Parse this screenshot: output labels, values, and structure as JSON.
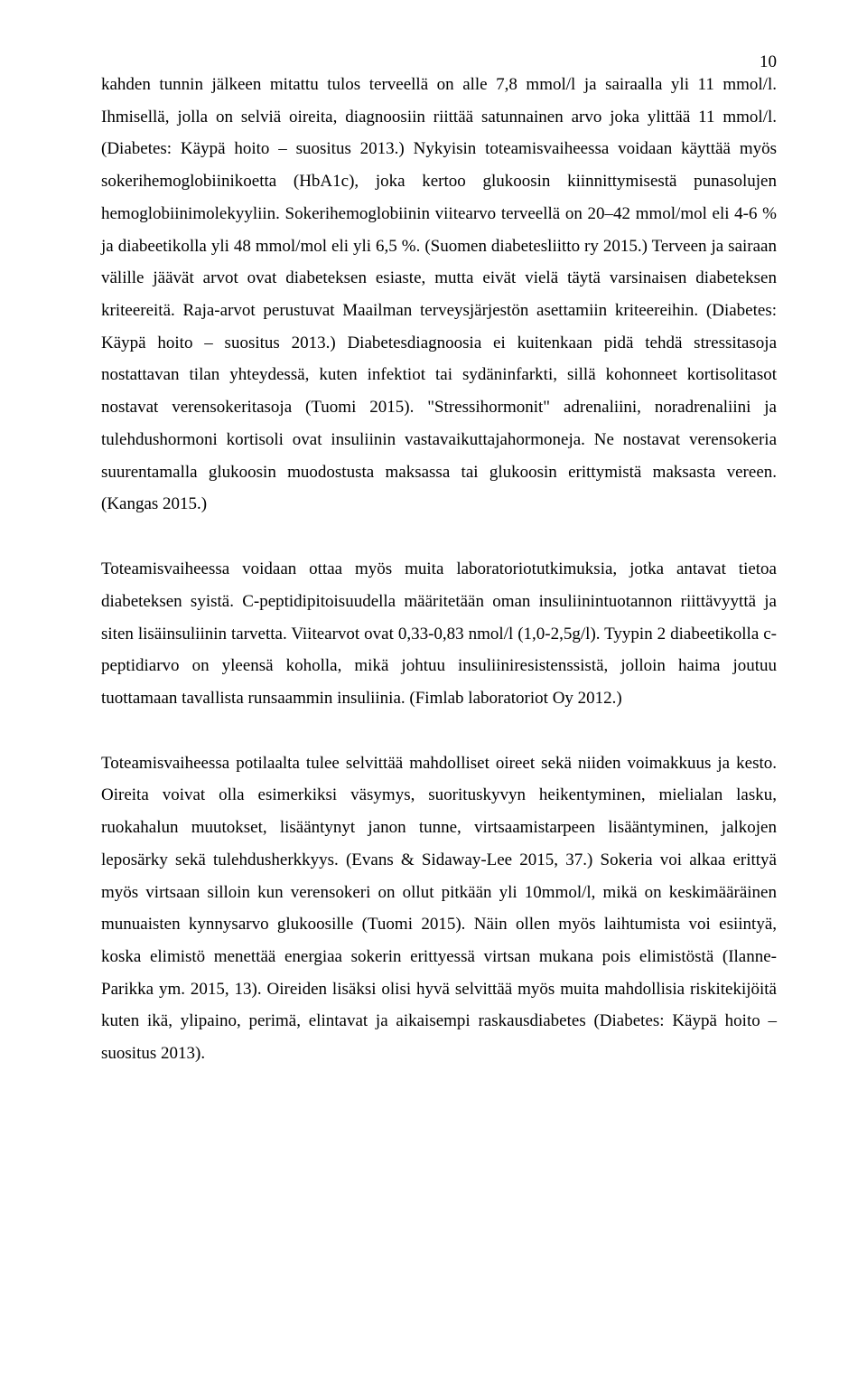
{
  "page_number": "10",
  "paragraphs": [
    "kahden tunnin jälkeen mitattu tulos terveellä on alle 7,8 mmol/l ja sairaalla yli 11 mmol/l. Ihmisellä, jolla on selviä oireita, diagnoosiin riittää satunnainen arvo joka ylittää 11 mmol/l. (Diabetes: Käypä hoito – suositus 2013.) Nykyisin toteamisvaiheessa voidaan käyttää myös sokerihemoglobiinikoetta (HbA1c), joka kertoo glukoosin kiinnittymisestä punasolujen hemoglobiinimolekyyliin. Sokerihemoglobiinin viitearvo terveellä on 20–42 mmol/mol eli 4-6 % ja diabeetikolla yli 48 mmol/mol eli yli 6,5 %. (Suomen diabetesliitto ry 2015.) Terveen ja sairaan välille jäävät arvot ovat diabeteksen esiaste, mutta eivät vielä täytä varsinaisen diabeteksen kriteereitä. Raja-arvot perustuvat Maailman terveysjärjestön asettamiin kriteereihin. (Diabetes: Käypä hoito – suositus 2013.) Diabetesdiagnoosia ei kuitenkaan pidä tehdä stressitasoja nostattavan tilan yhteydessä, kuten infektiot tai sydäninfarkti, sillä kohonneet kortisolitasot nostavat verensokeritasoja (Tuomi 2015). \"Stressihormonit\" adrenaliini, noradrenaliini ja tulehdushormoni kortisoli ovat insuliinin vastavaikuttajahormoneja. Ne nostavat verensokeria suurentamalla glukoosin muodostusta maksassa tai glukoosin erittymistä maksasta vereen. (Kangas 2015.)",
    "Toteamisvaiheessa voidaan ottaa myös muita laboratoriotutkimuksia, jotka antavat tietoa diabeteksen syistä. C-peptidipitoisuudella määritetään oman insuliinintuotannon riittävyyttä ja siten lisäinsuliinin tarvetta. Viitearvot ovat 0,33-0,83 nmol/l (1,0-2,5g/l). Tyypin 2 diabeetikolla c-peptidiarvo on yleensä koholla, mikä johtuu insuliiniresistenssistä, jolloin haima joutuu tuottamaan tavallista runsaammin insuliinia. (Fimlab laboratoriot Oy 2012.)",
    "Toteamisvaiheessa potilaalta tulee selvittää mahdolliset oireet sekä niiden voimakkuus ja kesto. Oireita voivat olla esimerkiksi väsymys, suorituskyvyn heikentyminen, mielialan lasku, ruokahalun muutokset, lisääntynyt janon tunne, virtsaamistarpeen lisääntyminen, jalkojen leposärky sekä tulehdusherkkyys. (Evans & Sidaway-Lee 2015, 37.) Sokeria voi alkaa erittyä myös virtsaan silloin kun verensokeri on ollut pitkään yli 10mmol/l, mikä on keskimääräinen munuaisten kynnysarvo glukoosille (Tuomi 2015). Näin ollen myös laihtumista voi esiintyä, koska elimistö menettää energiaa sokerin erittyessä virtsan mukana pois elimistöstä (Ilanne-Parikka ym. 2015, 13). Oireiden lisäksi olisi hyvä selvittää myös muita mahdollisia riskitekijöitä kuten ikä, ylipaino, perimä, elintavat ja aikaisempi raskausdiabetes (Diabetes: Käypä hoito – suositus 2013)."
  ]
}
